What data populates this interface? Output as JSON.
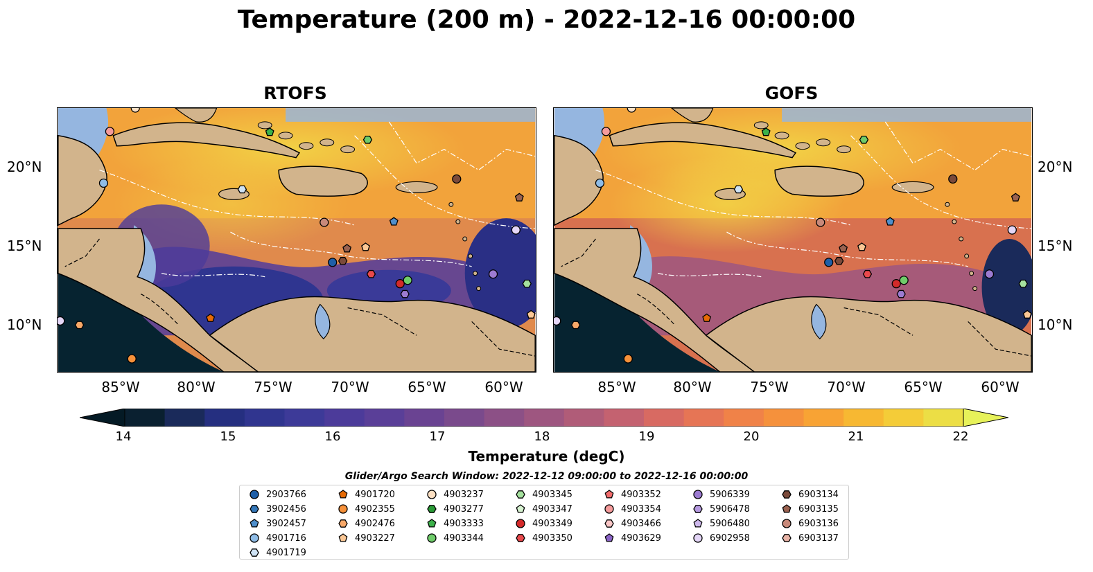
{
  "title": "Temperature (200 m) - 2022-12-16 00:00:00",
  "panels": [
    {
      "title": "RTOFS"
    },
    {
      "title": "GOFS"
    }
  ],
  "lon_ticks": [
    "85°W",
    "80°W",
    "75°W",
    "70°W",
    "65°W",
    "60°W"
  ],
  "lat_ticks": [
    "20°N",
    "15°N",
    "10°N"
  ],
  "colorbar": {
    "label": "Temperature (degC)",
    "ticks": [
      "14",
      "15",
      "16",
      "17",
      "18",
      "19",
      "20",
      "21",
      "22"
    ],
    "colors": [
      "#0a2030",
      "#1a2a5a",
      "#252f80",
      "#30358f",
      "#3d3a98",
      "#4c3b9a",
      "#5a3f98",
      "#6a4392",
      "#7a4a8c",
      "#8c5086",
      "#9e5680",
      "#b05c78",
      "#c46270",
      "#d86a62",
      "#e67555",
      "#f08248",
      "#f5913c",
      "#f8a334",
      "#f7b832",
      "#f4cc38",
      "#ecde45"
    ],
    "end_colors": {
      "low": "#041a25",
      "high": "#e7f25a"
    }
  },
  "legend": {
    "title": "Glider/Argo Search Window: 2022-12-12 09:00:00 to 2022-12-16 00:00:00",
    "columns": [
      [
        {
          "label": "2903766",
          "color": "#1f5fa8",
          "shape": "circle"
        },
        {
          "label": "3902456",
          "color": "#3477b8",
          "shape": "hexagon"
        },
        {
          "label": "3902457",
          "color": "#4f8fcc",
          "shape": "pentagon"
        },
        {
          "label": "4901716",
          "color": "#8fbce6",
          "shape": "circle"
        },
        {
          "label": "4901719",
          "color": "#cfe3f5",
          "shape": "hexagon"
        }
      ],
      [
        {
          "label": "4901720",
          "color": "#e66a05",
          "shape": "pentagon"
        },
        {
          "label": "4902355",
          "color": "#f6913a",
          "shape": "circle"
        },
        {
          "label": "4902476",
          "color": "#f8a868",
          "shape": "hexagon"
        },
        {
          "label": "4903227",
          "color": "#fbc795",
          "shape": "pentagon"
        }
      ],
      [
        {
          "label": "4903237",
          "color": "#fde0c3",
          "shape": "circle"
        },
        {
          "label": "4903277",
          "color": "#2a9a36",
          "shape": "hexagon"
        },
        {
          "label": "4903333",
          "color": "#3cb14a",
          "shape": "pentagon"
        },
        {
          "label": "4903344",
          "color": "#6fcc6a",
          "shape": "circle"
        }
      ],
      [
        {
          "label": "4903345",
          "color": "#a5e19e",
          "shape": "hexagon"
        },
        {
          "label": "4903347",
          "color": "#d6f2d0",
          "shape": "pentagon"
        },
        {
          "label": "4903349",
          "color": "#d32a2a",
          "shape": "circle"
        },
        {
          "label": "4903350",
          "color": "#e8494c",
          "shape": "hexagon"
        }
      ],
      [
        {
          "label": "4903352",
          "color": "#f26c6c",
          "shape": "pentagon"
        },
        {
          "label": "4903354",
          "color": "#f59b9b",
          "shape": "circle"
        },
        {
          "label": "4903466",
          "color": "#fac6c6",
          "shape": "hexagon"
        },
        {
          "label": "4903629",
          "color": "#8a63c6",
          "shape": "pentagon"
        }
      ],
      [
        {
          "label": "5906339",
          "color": "#9c7bd1",
          "shape": "circle"
        },
        {
          "label": "5906478",
          "color": "#b69ae0",
          "shape": "hexagon"
        },
        {
          "label": "5906480",
          "color": "#cdb8ec",
          "shape": "pentagon"
        },
        {
          "label": "6902958",
          "color": "#e4d6f7",
          "shape": "circle"
        }
      ],
      [
        {
          "label": "6903134",
          "color": "#7b4a3a",
          "shape": "hexagon"
        },
        {
          "label": "6903135",
          "color": "#9a6250",
          "shape": "pentagon"
        },
        {
          "label": "6903136",
          "color": "#c8897a",
          "shape": "circle"
        },
        {
          "label": "6903137",
          "color": "#e8b3a6",
          "shape": "hexagon"
        }
      ]
    ]
  }
}
